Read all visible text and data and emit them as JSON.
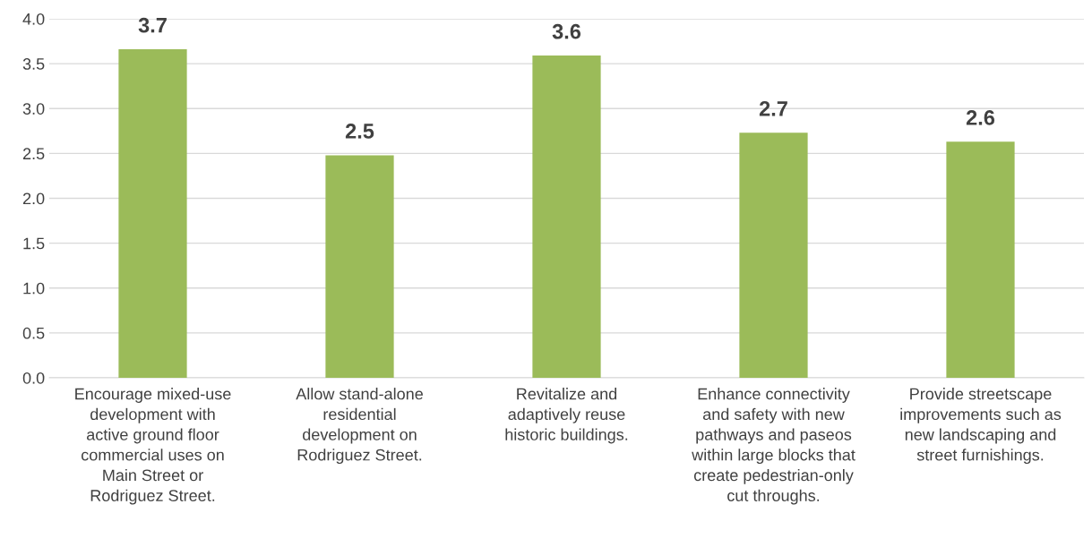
{
  "chart_data": {
    "type": "bar",
    "categories": [
      "Encourage mixed-use\ndevelopment with\nactive ground floor\ncommercial uses on\nMain Street or\nRodriguez Street.",
      "Allow stand-alone\nresidential\ndevelopment on\nRodriguez Street.",
      "Revitalize and\nadaptively reuse\nhistoric buildings.",
      "Enhance connectivity\nand safety with new\npathways and paseos\nwithin large blocks that\ncreate pedestrian-only\ncut throughs.",
      "Provide streetscape\nimprovements such as\nnew landscaping and\nstreet furnishings."
    ],
    "values": [
      3.66,
      2.48,
      3.59,
      2.73,
      2.63
    ],
    "value_labels": [
      "3.7",
      "2.5",
      "3.6",
      "2.7",
      "2.6"
    ],
    "color": "#9bbb59",
    "ylim": [
      0,
      4.0
    ],
    "yticks": [
      {
        "value": 0,
        "label": "0.0"
      },
      {
        "value": 0.5,
        "label": "0.5"
      },
      {
        "value": 1.0,
        "label": "1.0"
      },
      {
        "value": 1.5,
        "label": "1.5"
      },
      {
        "value": 2.0,
        "label": "2.0"
      },
      {
        "value": 2.5,
        "label": "2.5"
      },
      {
        "value": 3.0,
        "label": "3.0"
      },
      {
        "value": 3.5,
        "label": "3.5"
      },
      {
        "value": 4.0,
        "label": "4.0"
      }
    ],
    "grid": "y",
    "legend": false
  }
}
